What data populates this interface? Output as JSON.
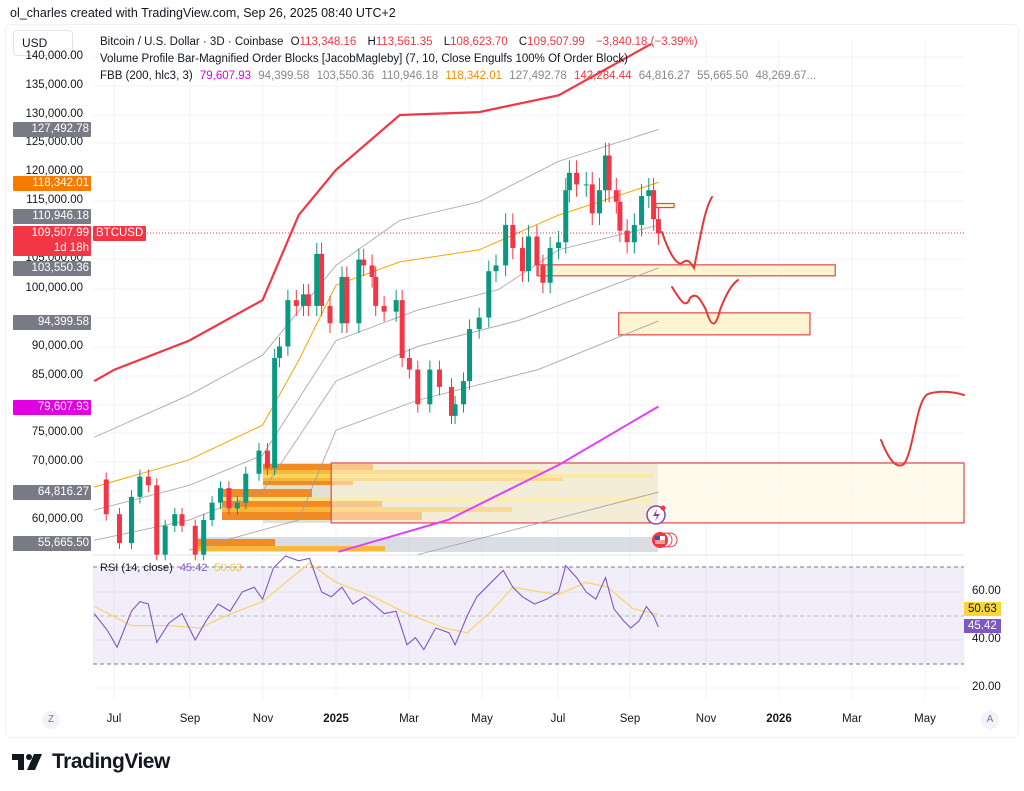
{
  "header": {
    "credit": "ol_charles created with TradingView.com, Sep 26, 2025 08:40 UTC+2"
  },
  "currency_button": "USD",
  "legend": {
    "symbol": "Bitcoin / U.S. Dollar · 3D · Coinbase",
    "o_label": "O",
    "o": "113,348.16",
    "h_label": "H",
    "h": "113,561.35",
    "l_label": "L",
    "l": "108,623.70",
    "c_label": "C",
    "c": "109,507.99",
    "change": "−3,840.18 (−3.39%)",
    "indicator2": "Volume Profile Bar-Magnified Order Blocks [JacobMagleby] (7, 10, Close Engulfs 100% Of Order Block)",
    "fbb_label": "FBB (200, hlc3, 3)",
    "fbb_values": [
      "79,607.93",
      "94,399.58",
      "103,550.36",
      "110,946.18",
      "118,342.01",
      "127,492.78",
      "142,284.44",
      "64,816.27",
      "55,665.50",
      "48,269.67..."
    ]
  },
  "price_axis": {
    "ticks": [
      "140,000.00",
      "135,000.00",
      "130,000.00",
      "125,000.00",
      "120,000.00",
      "115,000.00",
      "105,000.00",
      "100,000.00",
      "90,000.00",
      "85,000.00",
      "75,000.00",
      "70,000.00",
      "60,000.00"
    ]
  },
  "price_badges": [
    {
      "text": "127,492.78",
      "color": "#787b86"
    },
    {
      "text": "118,342.01",
      "color": "#f57c00"
    },
    {
      "text": "110,946.18",
      "color": "#787b86"
    },
    {
      "text": "109,507.99",
      "color": "#f23645",
      "sub": "1d 18h",
      "tag": "BTCUSD"
    },
    {
      "text": "103,550.36",
      "color": "#787b86"
    },
    {
      "text": "94,399.58",
      "color": "#787b86"
    },
    {
      "text": "79,607.93",
      "color": "#e100e1"
    },
    {
      "text": "64,816.27",
      "color": "#787b86"
    },
    {
      "text": "55,665.50",
      "color": "#787b86"
    }
  ],
  "rsi": {
    "label": "RSI (14, close)",
    "value": "45.42",
    "ma_value": "50.63",
    "ticks": [
      "60.00",
      "40.00",
      "20.00"
    ],
    "badge_rsi": "45.42",
    "badge_ma": "50.63"
  },
  "time_axis": {
    "labels": [
      "Jul",
      "Sep",
      "Nov",
      "2025",
      "Mar",
      "May",
      "Jul",
      "Sep",
      "Nov",
      "2026",
      "Mar",
      "May"
    ],
    "left_button": "Z",
    "right_button": "A"
  },
  "footer": {
    "brand": "TradingView"
  },
  "colors": {
    "up": "#089981",
    "down": "#f23645",
    "upper_band": "#f23645",
    "mid_band": "#f7a600",
    "lower_band": "#e040fb",
    "band": "#9e9e9e",
    "rsi": "#7e57c2",
    "rsi_ma": "#f5d76e"
  },
  "chart_data": {
    "type": "candlestick",
    "symbol": "BTCUSD",
    "interval": "3D",
    "ylim": [
      52000,
      146000
    ],
    "xlim": [
      "2024-06-14",
      "2026-06-20"
    ],
    "grid": true,
    "closes": [
      [
        "2024-06-14",
        67000
      ],
      [
        "2024-06-24",
        61000
      ],
      [
        "2024-07-05",
        56000
      ],
      [
        "2024-07-15",
        64000
      ],
      [
        "2024-07-22",
        67500
      ],
      [
        "2024-07-29",
        66000
      ],
      [
        "2024-08-05",
        54000
      ],
      [
        "2024-08-12",
        59000
      ],
      [
        "2024-08-20",
        61000
      ],
      [
        "2024-08-26",
        59000
      ],
      [
        "2024-09-06",
        54000
      ],
      [
        "2024-09-13",
        60000
      ],
      [
        "2024-09-20",
        63000
      ],
      [
        "2024-09-27",
        65500
      ],
      [
        "2024-10-04",
        62000
      ],
      [
        "2024-10-11",
        63000
      ],
      [
        "2024-10-18",
        68000
      ],
      [
        "2024-10-29",
        72000
      ],
      [
        "2024-11-05",
        69000
      ],
      [
        "2024-11-11",
        88000
      ],
      [
        "2024-11-15",
        90000
      ],
      [
        "2024-11-22",
        98000
      ],
      [
        "2024-11-29",
        97000
      ],
      [
        "2024-12-05",
        99000
      ],
      [
        "2024-12-09",
        97000
      ],
      [
        "2024-12-16",
        106000
      ],
      [
        "2024-12-20",
        97000
      ],
      [
        "2024-12-27",
        94000
      ],
      [
        "2025-01-06",
        102000
      ],
      [
        "2025-01-10",
        94000
      ],
      [
        "2025-01-20",
        105000
      ],
      [
        "2025-01-24",
        104000
      ],
      [
        "2025-01-31",
        102000
      ],
      [
        "2025-02-03",
        97000
      ],
      [
        "2025-02-10",
        96000
      ],
      [
        "2025-02-20",
        98000
      ],
      [
        "2025-02-25",
        88000
      ],
      [
        "2025-03-03",
        86000
      ],
      [
        "2025-03-10",
        80000
      ],
      [
        "2025-03-20",
        86000
      ],
      [
        "2025-03-28",
        83000
      ],
      [
        "2025-04-07",
        78000
      ],
      [
        "2025-04-10",
        80000
      ],
      [
        "2025-04-17",
        84000
      ],
      [
        "2025-04-22",
        93000
      ],
      [
        "2025-04-30",
        95000
      ],
      [
        "2025-05-08",
        103000
      ],
      [
        "2025-05-14",
        104000
      ],
      [
        "2025-05-22",
        111000
      ],
      [
        "2025-05-28",
        107000
      ],
      [
        "2025-06-05",
        103000
      ],
      [
        "2025-06-10",
        109000
      ],
      [
        "2025-06-17",
        104000
      ],
      [
        "2025-06-22",
        101000
      ],
      [
        "2025-06-28",
        107000
      ],
      [
        "2025-07-05",
        108000
      ],
      [
        "2025-07-11",
        117000
      ],
      [
        "2025-07-14",
        120000
      ],
      [
        "2025-07-20",
        118000
      ],
      [
        "2025-07-28",
        118000
      ],
      [
        "2025-08-02",
        113000
      ],
      [
        "2025-08-08",
        117000
      ],
      [
        "2025-08-13",
        123000
      ],
      [
        "2025-08-16",
        117000
      ],
      [
        "2025-08-22",
        115000
      ],
      [
        "2025-08-25",
        110000
      ],
      [
        "2025-08-31",
        108000
      ],
      [
        "2025-09-06",
        111000
      ],
      [
        "2025-09-12",
        116000
      ],
      [
        "2025-09-18",
        117000
      ],
      [
        "2025-09-22",
        112000
      ],
      [
        "2025-09-26",
        109507.99
      ]
    ],
    "bands": [
      {
        "name": "upper",
        "color": "#f23645",
        "points": [
          [
            "2024-06-14",
            84000
          ],
          [
            "2024-07-01",
            86000
          ],
          [
            "2024-09-01",
            91000
          ],
          [
            "2024-11-01",
            98000
          ],
          [
            "2024-12-01",
            112700
          ],
          [
            "2025-01-01",
            120500
          ],
          [
            "2025-02-23",
            130000
          ],
          [
            "2025-04-30",
            130500
          ],
          [
            "2025-07-05",
            133400
          ],
          [
            "2025-09-20",
            142284.44
          ]
        ]
      },
      {
        "name": "",
        "color": "#9e9e9e",
        "points": [
          [
            "2024-06-14",
            74300
          ],
          [
            "2024-09-01",
            81600
          ],
          [
            "2024-11-01",
            88500
          ],
          [
            "2025-01-01",
            104000
          ],
          [
            "2025-02-23",
            111800
          ],
          [
            "2025-04-30",
            115000
          ],
          [
            "2025-07-05",
            122000
          ],
          [
            "2025-09-26",
            127492.78
          ]
        ]
      },
      {
        "name": "",
        "color": "#f7a600",
        "points": [
          [
            "2024-06-14",
            65700
          ],
          [
            "2024-09-01",
            70400
          ],
          [
            "2024-11-01",
            76400
          ],
          [
            "2024-12-01",
            87600
          ],
          [
            "2025-01-01",
            100600
          ],
          [
            "2025-02-23",
            104600
          ],
          [
            "2025-04-30",
            106700
          ],
          [
            "2025-07-05",
            112700
          ],
          [
            "2025-09-26",
            118342.01
          ]
        ]
      },
      {
        "name": "",
        "color": "#9e9e9e",
        "points": [
          [
            "2024-06-14",
            61700
          ],
          [
            "2024-09-01",
            66000
          ],
          [
            "2024-11-01",
            71200
          ],
          [
            "2025-01-01",
            91000
          ],
          [
            "2025-03-10",
            96300
          ],
          [
            "2025-05-16",
            99800
          ],
          [
            "2025-07-05",
            106700
          ],
          [
            "2025-09-26",
            110946.18
          ]
        ]
      },
      {
        "name": "",
        "color": "#9e9e9e",
        "points": [
          [
            "2024-06-14",
            56500
          ],
          [
            "2024-09-01",
            60000
          ],
          [
            "2024-11-01",
            65000
          ],
          [
            "2025-01-01",
            84000
          ],
          [
            "2025-03-10",
            90000
          ],
          [
            "2025-06-02",
            94500
          ],
          [
            "2025-09-26",
            103550.36
          ]
        ]
      },
      {
        "name": "",
        "color": "#9e9e9e",
        "points": [
          [
            "2024-09-01",
            54800
          ],
          [
            "2024-12-01",
            60000
          ],
          [
            "2025-01-01",
            75500
          ],
          [
            "2025-03-10",
            80700
          ],
          [
            "2025-06-18",
            86000
          ],
          [
            "2025-09-26",
            94399.58
          ]
        ]
      },
      {
        "name": "lower",
        "color": "#e040fb",
        "points": [
          [
            "2025-01-03",
            54500
          ],
          [
            "2025-04-04",
            60000
          ],
          [
            "2025-07-05",
            69500
          ],
          [
            "2025-09-26",
            79607.93
          ]
        ]
      },
      {
        "name": "",
        "color": "#9e9e9e",
        "points": [
          [
            "2025-03-10",
            54000
          ],
          [
            "2025-09-26",
            64816.27
          ]
        ]
      }
    ],
    "order_blocks": [
      {
        "from": "2025-09-24",
        "to": "2025-10-09",
        "top": 114700,
        "bottom": 114000
      },
      {
        "from": "2025-06-18",
        "to": "2026-02-20",
        "top": 104100,
        "bottom": 102200
      },
      {
        "from": "2025-08-24",
        "to": "2026-01-30",
        "top": 95800,
        "bottom": 92000
      },
      {
        "from": "2024-12-28",
        "to": "2026-06-20",
        "top": 69850,
        "bottom": 59500
      }
    ],
    "rsi_series": [
      [
        "2024-06-14",
        51
      ],
      [
        "2024-06-25",
        44
      ],
      [
        "2024-07-03",
        37
      ],
      [
        "2024-07-15",
        52
      ],
      [
        "2024-07-22",
        56
      ],
      [
        "2024-07-29",
        55
      ],
      [
        "2024-08-05",
        39
      ],
      [
        "2024-08-15",
        47
      ],
      [
        "2024-08-26",
        51
      ],
      [
        "2024-09-06",
        40
      ],
      [
        "2024-09-15",
        48
      ],
      [
        "2024-09-25",
        55
      ],
      [
        "2024-10-05",
        52
      ],
      [
        "2024-10-15",
        60
      ],
      [
        "2024-10-25",
        62
      ],
      [
        "2024-11-01",
        57
      ],
      [
        "2024-11-10",
        70
      ],
      [
        "2024-11-20",
        75
      ],
      [
        "2024-12-01",
        73
      ],
      [
        "2024-12-10",
        74
      ],
      [
        "2024-12-20",
        60
      ],
      [
        "2024-12-28",
        58
      ],
      [
        "2025-01-06",
        62
      ],
      [
        "2025-01-15",
        55
      ],
      [
        "2025-01-25",
        58
      ],
      [
        "2025-02-01",
        55
      ],
      [
        "2025-02-10",
        51
      ],
      [
        "2025-02-20",
        52
      ],
      [
        "2025-03-01",
        38
      ],
      [
        "2025-03-08",
        41
      ],
      [
        "2025-03-15",
        36
      ],
      [
        "2025-03-25",
        45
      ],
      [
        "2025-04-05",
        43
      ],
      [
        "2025-04-10",
        38
      ],
      [
        "2025-04-20",
        50
      ],
      [
        "2025-04-28",
        58
      ],
      [
        "2025-05-08",
        63
      ],
      [
        "2025-05-20",
        69
      ],
      [
        "2025-05-28",
        62
      ],
      [
        "2025-06-05",
        58
      ],
      [
        "2025-06-15",
        55
      ],
      [
        "2025-06-25",
        57
      ],
      [
        "2025-07-05",
        60
      ],
      [
        "2025-07-11",
        71
      ],
      [
        "2025-07-20",
        66
      ],
      [
        "2025-07-28",
        60
      ],
      [
        "2025-08-05",
        57
      ],
      [
        "2025-08-13",
        66
      ],
      [
        "2025-08-20",
        53
      ],
      [
        "2025-08-28",
        48
      ],
      [
        "2025-09-03",
        45
      ],
      [
        "2025-09-10",
        48
      ],
      [
        "2025-09-16",
        54
      ],
      [
        "2025-09-22",
        50
      ],
      [
        "2025-09-26",
        45.42
      ]
    ],
    "rsi_ma_series": [
      [
        "2024-06-14",
        54
      ],
      [
        "2024-07-15",
        46
      ],
      [
        "2024-08-15",
        46
      ],
      [
        "2024-09-10",
        45
      ],
      [
        "2024-10-01",
        50
      ],
      [
        "2024-11-01",
        56
      ],
      [
        "2024-11-25",
        66
      ],
      [
        "2024-12-10",
        72
      ],
      [
        "2025-01-01",
        64
      ],
      [
        "2025-02-01",
        58
      ],
      [
        "2025-03-01",
        51
      ],
      [
        "2025-04-01",
        45
      ],
      [
        "2025-04-20",
        43
      ],
      [
        "2025-05-10",
        52
      ],
      [
        "2025-05-28",
        62
      ],
      [
        "2025-06-20",
        60
      ],
      [
        "2025-07-05",
        59
      ],
      [
        "2025-07-28",
        64
      ],
      [
        "2025-08-15",
        62
      ],
      [
        "2025-09-05",
        53
      ],
      [
        "2025-09-26",
        50.63
      ]
    ],
    "rsi_levels": [
      70,
      50,
      30
    ],
    "rsi_ylim": [
      10,
      80
    ]
  }
}
